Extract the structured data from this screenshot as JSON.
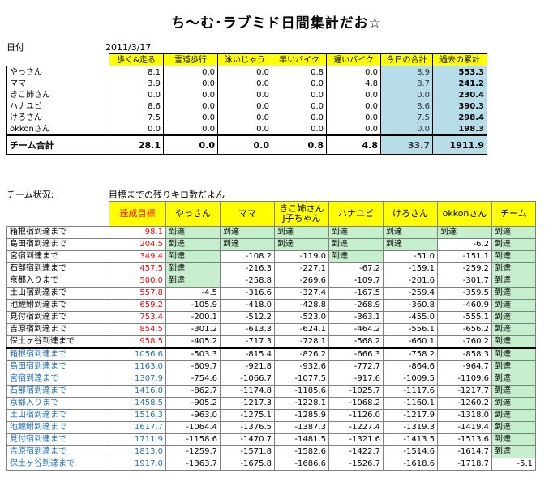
{
  "title": "ち～む･ラブミド日間集計だお☆",
  "date_label": "日付",
  "date_value": "2011/3/17",
  "summary": {
    "headers": [
      "歩く&走る",
      "雪道歩行",
      "泳いじゃう",
      "早いバイク",
      "遅いバイク",
      "今日の合計",
      "過去の累計"
    ],
    "rows": [
      {
        "name": "やっさん",
        "v": [
          "8.1",
          "0.0",
          "0.0",
          "0.8",
          "0.0",
          "8.9",
          "553.3"
        ]
      },
      {
        "name": "ママ",
        "v": [
          "3.9",
          "0.0",
          "0.0",
          "0.0",
          "4.8",
          "8.7",
          "241.2"
        ]
      },
      {
        "name": "きこ姉さん",
        "v": [
          "0.0",
          "0.0",
          "0.0",
          "0.0",
          "0.0",
          "0.0",
          "230.4"
        ]
      },
      {
        "name": "ハナユビ",
        "v": [
          "8.6",
          "0.0",
          "0.0",
          "0.0",
          "0.0",
          "8.6",
          "390.3"
        ]
      },
      {
        "name": "けろさん",
        "v": [
          "7.5",
          "0.0",
          "0.0",
          "0.0",
          "0.0",
          "7.5",
          "298.4"
        ]
      },
      {
        "name": "okkonさん",
        "v": [
          "0.0",
          "0.0",
          "0.0",
          "0.0",
          "0.0",
          "0.0",
          "198.3"
        ]
      }
    ],
    "total": {
      "name": "チーム合計",
      "v": [
        "28.1",
        "0.0",
        "0.0",
        "0.8",
        "4.8",
        "33.7",
        "1911.9"
      ]
    }
  },
  "status_label": "チーム状況:",
  "status_note": "目標までの残りキロ数だよん",
  "goals": {
    "headers": [
      "達成目標",
      "やっさん",
      "ママ",
      "きこ姉さん\nJ子ちゃん",
      "ハナユビ",
      "けろさん",
      "okkonさん",
      "チーム"
    ],
    "reached": "到達",
    "rows": [
      {
        "name": "箱根宿到達まで",
        "goal": "98.1",
        "v": [
          "到達",
          "到達",
          "到達",
          "到達",
          "到達",
          "到達",
          "到達"
        ]
      },
      {
        "name": "島田宿到達まで",
        "goal": "204.5",
        "v": [
          "到達",
          "到達",
          "到達",
          "到達",
          "到達",
          "-6.2",
          "到達"
        ]
      },
      {
        "name": "宮宿到達まで",
        "goal": "349.4",
        "v": [
          "到達",
          "-108.2",
          "-119.0",
          "到達",
          "-51.0",
          "-151.1",
          "到達"
        ]
      },
      {
        "name": "石部宿到達まで",
        "goal": "457.5",
        "v": [
          "到達",
          "-216.3",
          "-227.1",
          "-67.2",
          "-159.1",
          "-259.2",
          "到達"
        ]
      },
      {
        "name": "京都入りまで",
        "goal": "500.0",
        "v": [
          "到達",
          "-258.8",
          "-269.6",
          "-109.7",
          "-201.6",
          "-301.7",
          "到達"
        ]
      },
      {
        "name": "土山宿到達まで",
        "goal": "557.8",
        "v": [
          "-4.5",
          "-316.6",
          "-327.4",
          "-167.5",
          "-259.4",
          "-359.5",
          "到達"
        ]
      },
      {
        "name": "池鯉鮒到達まで",
        "goal": "659.2",
        "v": [
          "-105.9",
          "-418.0",
          "-428.8",
          "-268.9",
          "-360.8",
          "-460.9",
          "到達"
        ]
      },
      {
        "name": "見付宿到達まで",
        "goal": "753.4",
        "v": [
          "-200.1",
          "-512.2",
          "-523.0",
          "-363.1",
          "-455.0",
          "-555.1",
          "到達"
        ]
      },
      {
        "name": "吉原宿到達まで",
        "goal": "854.5",
        "v": [
          "-301.2",
          "-613.3",
          "-624.1",
          "-464.2",
          "-556.1",
          "-656.2",
          "到達"
        ]
      },
      {
        "name": "保土ヶ谷到達まで",
        "goal": "958.5",
        "v": [
          "-405.2",
          "-717.3",
          "-728.1",
          "-568.2",
          "-660.1",
          "-760.2",
          "到達"
        ]
      },
      {
        "name": "箱根宿到達まで",
        "goal": "1056.6",
        "v": [
          "-503.3",
          "-815.4",
          "-826.2",
          "-666.3",
          "-758.2",
          "-858.3",
          "到達"
        ]
      },
      {
        "name": "島田宿到達まで",
        "goal": "1163.0",
        "v": [
          "-609.7",
          "-921.8",
          "-932.6",
          "-772.7",
          "-864.6",
          "-964.7",
          "到達"
        ]
      },
      {
        "name": "宮宿到達まで",
        "goal": "1307.9",
        "v": [
          "-754.6",
          "-1066.7",
          "-1077.5",
          "-917.6",
          "-1009.5",
          "-1109.6",
          "到達"
        ]
      },
      {
        "name": "石部宿到達まで",
        "goal": "1416.0",
        "v": [
          "-862.7",
          "-1174.8",
          "-1185.6",
          "-1025.7",
          "-1117.6",
          "-1217.7",
          "到達"
        ]
      },
      {
        "name": "京都入りまで",
        "goal": "1458.5",
        "v": [
          "-905.2",
          "-1217.3",
          "-1228.1",
          "-1068.2",
          "-1160.1",
          "-1260.2",
          "到達"
        ]
      },
      {
        "name": "土山宿到達まで",
        "goal": "1516.3",
        "v": [
          "-963.0",
          "-1275.1",
          "-1285.9",
          "-1126.0",
          "-1217.9",
          "-1318.0",
          "到達"
        ]
      },
      {
        "name": "池鯉鮒到達まで",
        "goal": "1617.7",
        "v": [
          "-1064.4",
          "-1376.5",
          "-1387.3",
          "-1227.4",
          "-1319.3",
          "-1419.4",
          "到達"
        ]
      },
      {
        "name": "見付宿到達まで",
        "goal": "1711.9",
        "v": [
          "-1158.6",
          "-1470.7",
          "-1481.5",
          "-1321.6",
          "-1413.5",
          "-1513.6",
          "到達"
        ]
      },
      {
        "name": "吉原宿到達まで",
        "goal": "1813.0",
        "v": [
          "-1259.7",
          "-1571.8",
          "-1582.6",
          "-1422.7",
          "-1514.6",
          "-1614.7",
          "到達"
        ]
      },
      {
        "name": "保土ヶ谷到達まで",
        "goal": "1917.0",
        "v": [
          "-1363.7",
          "-1675.8",
          "-1686.6",
          "-1526.7",
          "-1618.6",
          "-1718.7",
          "-5.1"
        ]
      }
    ]
  }
}
